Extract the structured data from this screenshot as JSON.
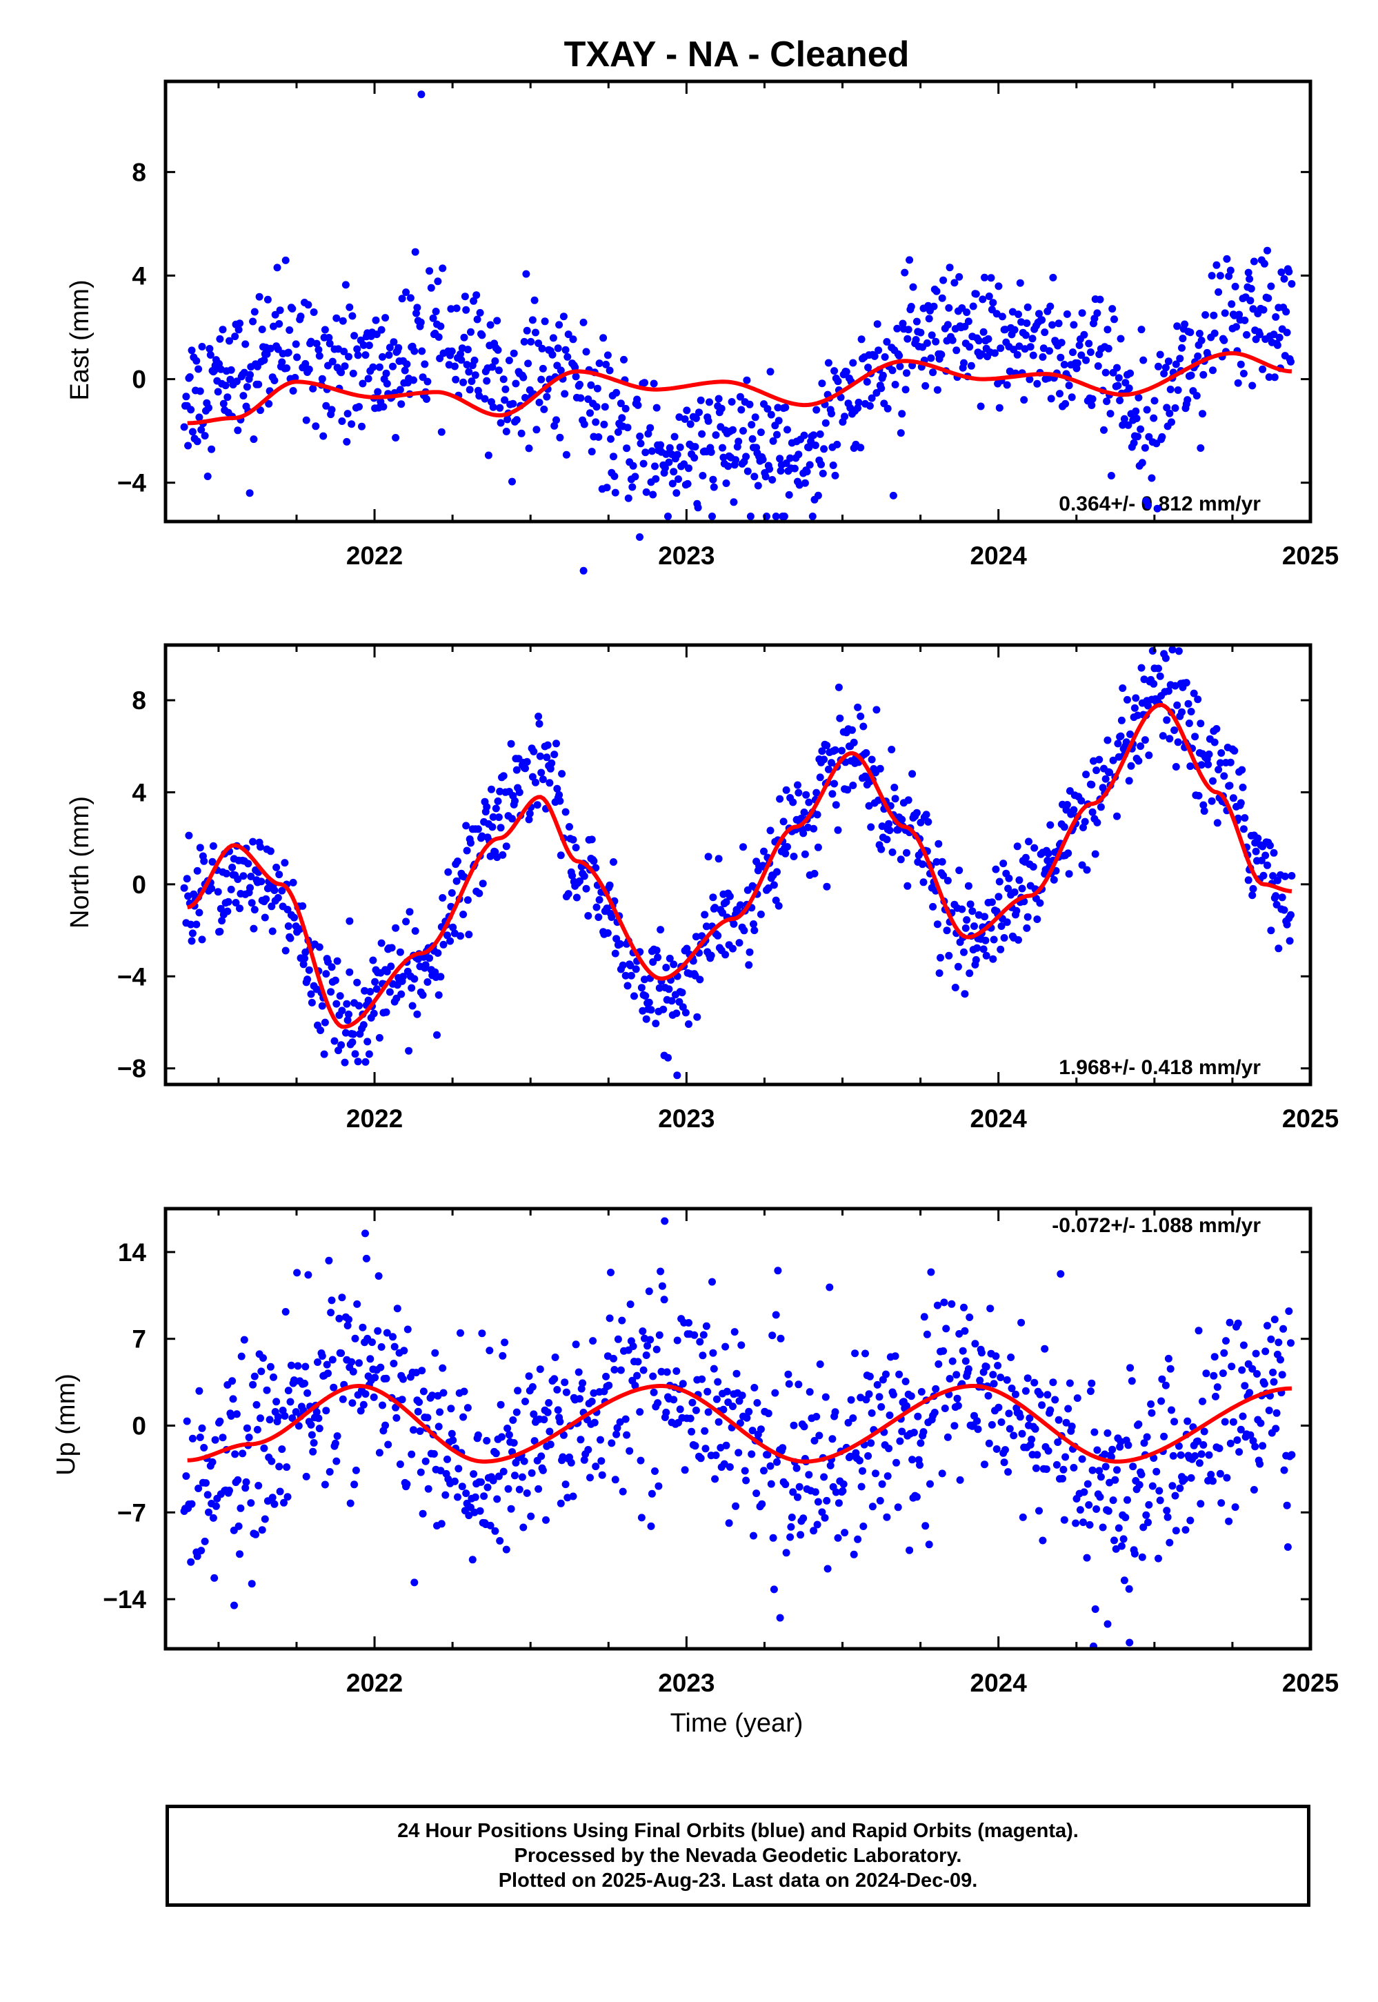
{
  "title": "TXAY  - NA - Cleaned",
  "xlabel": "Time (year)",
  "footer": {
    "line1": "24 Hour Positions Using Final Orbits (blue) and Rapid Orbits (magenta).",
    "line2": "Processed by the Nevada Geodetic Laboratory.",
    "line3": "Plotted on 2025-Aug-23. Last data on 2024-Dec-09."
  },
  "colors": {
    "points": "#0000ff",
    "fit": "#ff0000",
    "frame": "#000000"
  },
  "chart_data": [
    {
      "type": "scatter",
      "ylabel": "East (mm)",
      "rate_text": "0.364+/- 0.812 mm/yr",
      "rate_position": "bottom-right",
      "xlim": [
        2021.33,
        2025.0
      ],
      "ylim": [
        -5.5,
        11.5
      ],
      "xticks": [
        2022,
        2023,
        2024,
        2025
      ],
      "yticks": [
        -4,
        0,
        4,
        8
      ],
      "x_range": [
        2021.39,
        2024.94
      ],
      "fit": {
        "name": "model",
        "points": [
          [
            2021.4,
            -1.7
          ],
          [
            2021.55,
            -1.5
          ],
          [
            2021.75,
            -0.1
          ],
          [
            2022.0,
            -0.7
          ],
          [
            2022.2,
            -0.5
          ],
          [
            2022.4,
            -1.4
          ],
          [
            2022.65,
            0.3
          ],
          [
            2022.9,
            -0.4
          ],
          [
            2023.12,
            -0.1
          ],
          [
            2023.38,
            -1.0
          ],
          [
            2023.7,
            0.7
          ],
          [
            2023.95,
            0.0
          ],
          [
            2024.15,
            0.2
          ],
          [
            2024.4,
            -0.6
          ],
          [
            2024.75,
            1.0
          ],
          [
            2024.94,
            0.3
          ]
        ]
      },
      "scatter_spread_mm": 1.3,
      "data_level": [
        [
          2021.4,
          -0.5
        ],
        [
          2021.75,
          1.2
        ],
        [
          2022.0,
          0.3
        ],
        [
          2022.2,
          1.3
        ],
        [
          2022.45,
          -0.2
        ],
        [
          2022.62,
          0.5
        ],
        [
          2022.75,
          -2.0
        ],
        [
          2022.95,
          -2.8
        ],
        [
          2023.2,
          -2.8
        ],
        [
          2023.4,
          -2.8
        ],
        [
          2023.5,
          -0.5
        ],
        [
          2023.75,
          1.2
        ],
        [
          2024.05,
          1.5
        ],
        [
          2024.3,
          0.8
        ],
        [
          2024.45,
          -1.2
        ],
        [
          2024.6,
          0.5
        ],
        [
          2024.75,
          2.2
        ],
        [
          2024.94,
          2.0
        ]
      ],
      "outliers": [
        [
          2022.15,
          11.0
        ],
        [
          2022.67,
          -7.4
        ],
        [
          2021.6,
          -4.4
        ],
        [
          2022.85,
          -6.1
        ]
      ]
    },
    {
      "type": "scatter",
      "ylabel": "North (mm)",
      "rate_text": "1.968+/- 0.418 mm/yr",
      "rate_position": "bottom-right",
      "xlim": [
        2021.33,
        2025.0
      ],
      "ylim": [
        -8.7,
        10.4
      ],
      "xticks": [
        2022,
        2023,
        2024,
        2025
      ],
      "yticks": [
        -8,
        -4,
        0,
        4,
        8
      ],
      "x_range": [
        2021.39,
        2024.94
      ],
      "fit": {
        "name": "model",
        "points": [
          [
            2021.4,
            -1.0
          ],
          [
            2021.55,
            1.7
          ],
          [
            2021.7,
            0.0
          ],
          [
            2021.9,
            -6.2
          ],
          [
            2022.15,
            -3.0
          ],
          [
            2022.4,
            2.0
          ],
          [
            2022.53,
            3.8
          ],
          [
            2022.65,
            1.0
          ],
          [
            2022.92,
            -4.1
          ],
          [
            2023.15,
            -1.5
          ],
          [
            2023.35,
            2.5
          ],
          [
            2023.53,
            5.7
          ],
          [
            2023.7,
            2.5
          ],
          [
            2023.9,
            -2.3
          ],
          [
            2024.1,
            -0.5
          ],
          [
            2024.3,
            3.5
          ],
          [
            2024.52,
            7.8
          ],
          [
            2024.7,
            4.0
          ],
          [
            2024.85,
            0.0
          ],
          [
            2024.94,
            -0.3
          ]
        ]
      },
      "scatter_spread_mm": 1.1,
      "data_level": [
        [
          2021.4,
          0.0
        ],
        [
          2021.55,
          0.2
        ],
        [
          2021.65,
          0.0
        ],
        [
          2021.9,
          -5.8
        ],
        [
          2022.15,
          -3.8
        ],
        [
          2022.4,
          3.0
        ],
        [
          2022.55,
          5.5
        ],
        [
          2022.65,
          0.5
        ],
        [
          2022.92,
          -5.0
        ],
        [
          2023.15,
          -1.5
        ],
        [
          2023.35,
          2.5
        ],
        [
          2023.53,
          5.8
        ],
        [
          2023.7,
          2.5
        ],
        [
          2023.9,
          -2.5
        ],
        [
          2024.1,
          -0.2
        ],
        [
          2024.3,
          3.5
        ],
        [
          2024.52,
          8.0
        ],
        [
          2024.7,
          5.0
        ],
        [
          2024.85,
          1.0
        ],
        [
          2024.94,
          -1.0
        ]
      ],
      "outliers": [
        [
          2022.97,
          -8.3
        ],
        [
          2023.45,
          -0.1
        ],
        [
          2021.92,
          -1.6
        ]
      ]
    },
    {
      "type": "scatter",
      "ylabel": "Up (mm)",
      "rate_text": "-0.072+/- 1.088 mm/yr",
      "rate_position": "top-right",
      "xlim": [
        2021.33,
        2025.0
      ],
      "ylim": [
        -18,
        17.5
      ],
      "xticks": [
        2022,
        2023,
        2024,
        2025
      ],
      "yticks": [
        -14,
        -7,
        0,
        7,
        14
      ],
      "x_range": [
        2021.39,
        2024.94
      ],
      "fit": {
        "name": "model",
        "points": [
          [
            2021.4,
            -2.8
          ],
          [
            2021.6,
            -1.5
          ],
          [
            2021.95,
            3.2
          ],
          [
            2022.35,
            -2.9
          ],
          [
            2022.92,
            3.2
          ],
          [
            2023.38,
            -2.9
          ],
          [
            2023.92,
            3.2
          ],
          [
            2024.38,
            -2.9
          ],
          [
            2024.94,
            3.0
          ]
        ]
      },
      "scatter_spread_mm": 4.0,
      "data_level": [
        [
          2021.4,
          -5.0
        ],
        [
          2021.95,
          4.0
        ],
        [
          2022.35,
          -3.5
        ],
        [
          2022.92,
          4.0
        ],
        [
          2023.38,
          -3.5
        ],
        [
          2023.92,
          3.5
        ],
        [
          2024.38,
          -5.0
        ],
        [
          2024.94,
          2.5
        ]
      ],
      "outliers": [
        [
          2022.93,
          16.5
        ],
        [
          2021.97,
          15.5
        ],
        [
          2023.3,
          -15.5
        ],
        [
          2024.42,
          -17.5
        ],
        [
          2024.35,
          -16.0
        ],
        [
          2021.55,
          -14.5
        ]
      ]
    }
  ]
}
